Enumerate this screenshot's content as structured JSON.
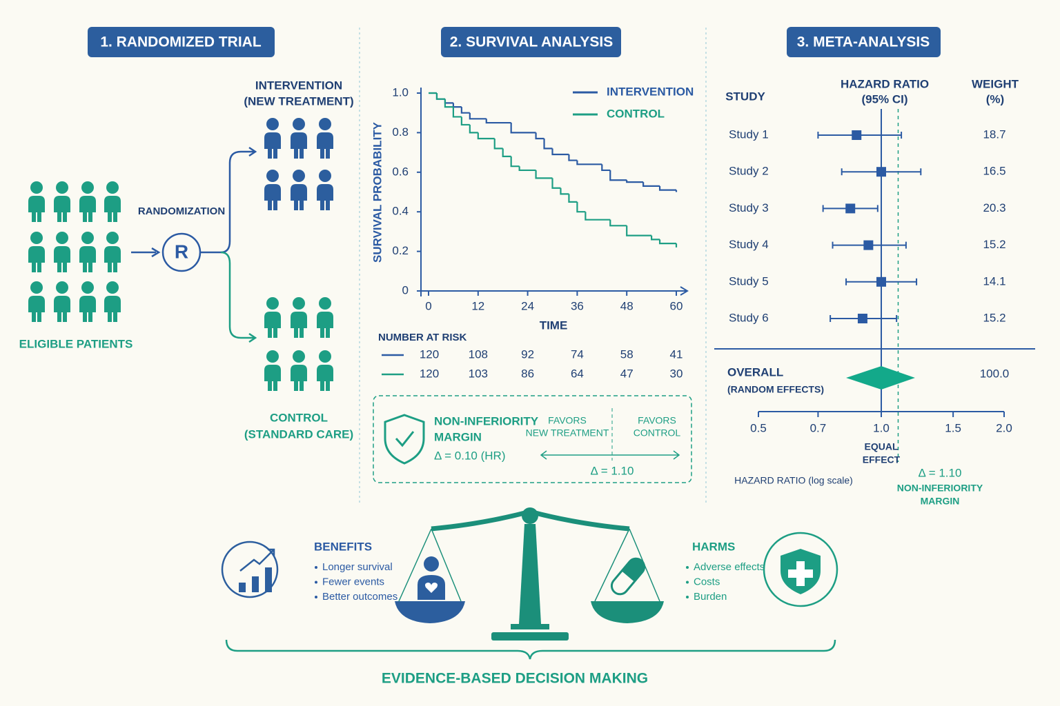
{
  "panels": [
    {
      "title": "1. RANDOMIZED TRIAL"
    },
    {
      "title": "2. SURVIVAL ANALYSIS"
    },
    {
      "title": "3. META-ANALYSIS"
    }
  ],
  "trial": {
    "eligible": "ELIGIBLE PATIENTS",
    "randomization": "RANDOMIZATION",
    "r": "R",
    "intervention": [
      "INTERVENTION",
      "(NEW TREATMENT)"
    ],
    "control": [
      "CONTROL",
      "(STANDARD CARE)"
    ]
  },
  "chart_data": [
    {
      "type": "line",
      "step": true,
      "y_label": "SURVIVAL PROBABILITY",
      "x_label": "TIME",
      "xlim": [
        0,
        60
      ],
      "xticks": [
        0,
        12,
        24,
        36,
        48,
        60
      ],
      "ylim": [
        0,
        1
      ],
      "yticks": [
        0,
        0.2,
        0.4,
        0.6,
        0.8,
        {
          "value": 1,
          "label": "1.0"
        }
      ],
      "series": [
        {
          "name": "INTERVENTION",
          "color": "#2b5aa3",
          "x": [
            0,
            2,
            4,
            6,
            8,
            10,
            14,
            20,
            26,
            28,
            30,
            34,
            36,
            42,
            44,
            48,
            52,
            56,
            60
          ],
          "values": [
            1.0,
            0.97,
            0.95,
            0.93,
            0.9,
            0.87,
            0.85,
            0.8,
            0.77,
            0.72,
            0.69,
            0.66,
            0.64,
            0.61,
            0.56,
            0.55,
            0.53,
            0.51,
            0.5
          ]
        },
        {
          "name": "CONTROL",
          "color": "#1d9e84",
          "x": [
            0,
            2,
            4,
            6,
            8,
            10,
            12,
            16,
            18,
            20,
            22,
            26,
            30,
            32,
            34,
            36,
            38,
            44,
            48,
            54,
            56,
            60
          ],
          "values": [
            1.0,
            0.97,
            0.93,
            0.88,
            0.84,
            0.8,
            0.77,
            0.72,
            0.68,
            0.63,
            0.61,
            0.57,
            0.52,
            0.49,
            0.45,
            0.4,
            0.36,
            0.33,
            0.28,
            0.26,
            0.24,
            0.22
          ]
        }
      ],
      "number_at_risk": {
        "title": "NUMBER AT RISK",
        "rows": [
          [
            120,
            108,
            92,
            74,
            58,
            41
          ],
          [
            120,
            103,
            86,
            64,
            47,
            30
          ]
        ]
      },
      "non_inferiority": {
        "title": [
          "NON-INFERIORITY",
          "MARGIN"
        ],
        "delta": "Δ = 0.10 (HR)",
        "favors_new": [
          "FAVORS",
          "NEW TREATMENT"
        ],
        "favors_control": [
          "FAVORS",
          "CONTROL"
        ],
        "delta_hr": "Δ = 1.10"
      }
    },
    {
      "type": "forest",
      "log_scale": true,
      "color": "#2b5aa3",
      "overall_color": "#13a98a",
      "margin_color": "#1d9e84",
      "headers": {
        "study": "STUDY",
        "hr": [
          "HAZARD RATIO",
          "(95% CI)"
        ],
        "weight": [
          "WEIGHT",
          "(%)"
        ]
      },
      "studies": [
        {
          "name": "Study 1",
          "hr": 0.87,
          "ci": [
            0.7,
            1.12
          ],
          "weight": 18.7
        },
        {
          "name": "Study 2",
          "hr": 1.0,
          "ci": [
            0.8,
            1.25
          ],
          "weight": 16.5
        },
        {
          "name": "Study 3",
          "hr": 0.84,
          "ci": [
            0.72,
            0.98
          ],
          "weight": 20.3
        },
        {
          "name": "Study 4",
          "hr": 0.93,
          "ci": [
            0.76,
            1.15
          ],
          "weight": 15.2
        },
        {
          "name": "Study 5",
          "hr": 1.0,
          "ci": [
            0.82,
            1.22
          ],
          "weight": 14.1
        },
        {
          "name": "Study 6",
          "hr": 0.9,
          "ci": [
            0.75,
            1.09
          ],
          "weight": 15.2
        }
      ],
      "overall": {
        "label": "OVERALL",
        "sublabel": "(RANDOM EFFECTS)",
        "hr": 1.0,
        "ci": [
          0.82,
          1.21
        ],
        "weight": 100,
        "weight_label": "100.0"
      },
      "xlim": [
        0.5,
        2.0
      ],
      "xticks": [
        0.5,
        0.7,
        {
          "value": 1,
          "label": "1.0"
        },
        1.5,
        {
          "value": 2,
          "label": "2.0"
        }
      ],
      "x_label": "HAZARD RATIO (log scale)",
      "equal_effect": [
        "EQUAL",
        "EFFECT"
      ],
      "margin": {
        "value": 1.1,
        "label": "Δ = 1.10",
        "caption": [
          "NON-INFERIORITY",
          "MARGIN"
        ]
      }
    }
  ],
  "decision": {
    "benefits": {
      "title": "BENEFITS",
      "items": [
        "Longer survival",
        "Fewer events",
        "Better outcomes"
      ]
    },
    "harms": {
      "title": "HARMS",
      "items": [
        "Adverse effects",
        "Costs",
        "Burden"
      ]
    },
    "footer": "EVIDENCE-BASED DECISION MAKING"
  }
}
